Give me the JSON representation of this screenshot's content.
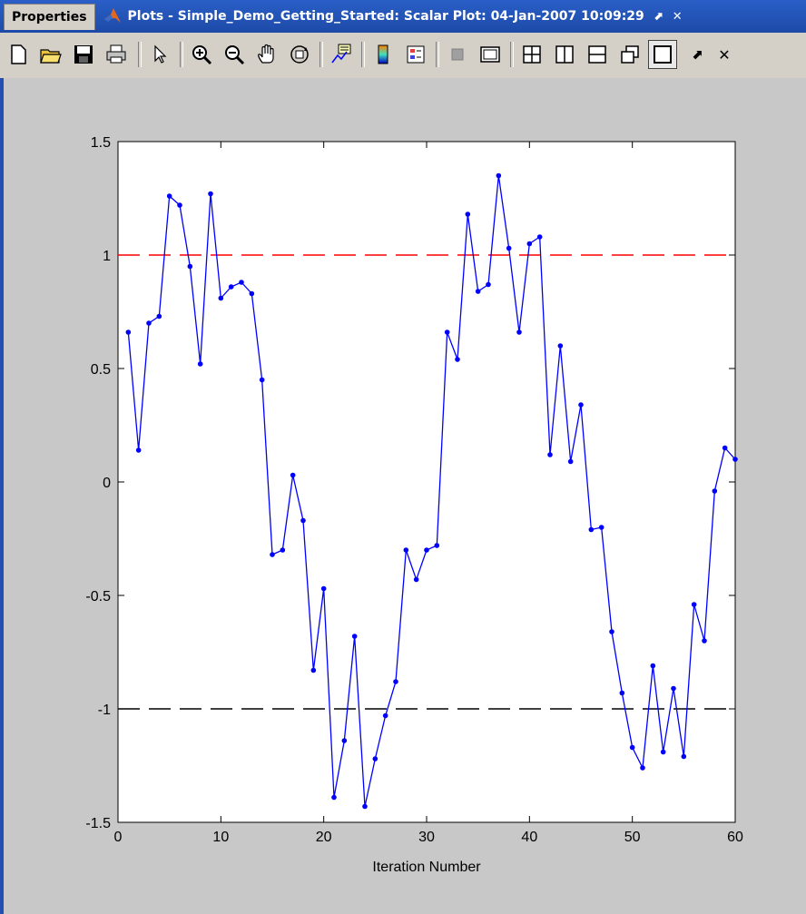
{
  "window": {
    "properties_tab": "Properties",
    "title": "Plots - Simple_Demo_Getting_Started: Scalar Plot: 04-Jan-2007 10:09:29",
    "btn_undock": "⬈",
    "btn_close": "✕"
  },
  "toolbar": {
    "items": [
      "new-figure",
      "open-file",
      "save",
      "print",
      "select-arrow",
      "zoom-in",
      "zoom-out",
      "pan-hand",
      "rotate-3d",
      "data-cursor",
      "colorbar",
      "legend",
      "hide-plot-tools",
      "show-plot-tools",
      "tile-grid",
      "tile-columns",
      "tile-rows",
      "float-windows",
      "maximize",
      "undock",
      "close"
    ],
    "undock_label": "⬈",
    "close_label": "✕"
  },
  "chart_data": {
    "type": "line",
    "xlabel": "Iteration Number",
    "ylabel": "",
    "xlim": [
      0,
      60
    ],
    "ylim": [
      -1.5,
      1.5
    ],
    "xticks": [
      "0",
      "10",
      "20",
      "30",
      "40",
      "50",
      "60"
    ],
    "yticks": [
      "-1.5",
      "-1",
      "-0.5",
      "0",
      "0.5",
      "1",
      "1.5"
    ],
    "grid": false,
    "series": [
      {
        "color": "#0000ff",
        "marker": "dot",
        "x": [
          1,
          2,
          3,
          4,
          5,
          6,
          7,
          8,
          9,
          10,
          11,
          12,
          13,
          14,
          15,
          16,
          17,
          18,
          19,
          20,
          21,
          22,
          23,
          24,
          25,
          26,
          27,
          28,
          29,
          30,
          31,
          32,
          33,
          34,
          35,
          36,
          37,
          38,
          39,
          40,
          41,
          42,
          43,
          44,
          45,
          46,
          47,
          48,
          49,
          50,
          51,
          52,
          53,
          54,
          55,
          56,
          57,
          58,
          59,
          60
        ],
        "values": [
          0.66,
          0.14,
          0.7,
          0.73,
          1.26,
          1.22,
          0.95,
          0.52,
          1.27,
          0.81,
          0.86,
          0.88,
          0.83,
          0.45,
          -0.32,
          -0.3,
          0.03,
          -0.17,
          -0.83,
          -0.47,
          -1.39,
          -1.14,
          -0.68,
          -1.43,
          -1.22,
          -1.03,
          -0.88,
          -0.3,
          -0.43,
          -0.3,
          -0.28,
          0.66,
          0.54,
          1.18,
          0.84,
          0.87,
          1.35,
          1.03,
          0.66,
          1.05,
          1.08,
          0.12,
          0.6,
          0.09,
          0.34,
          -0.21,
          -0.2,
          -0.66,
          -0.93,
          -1.17,
          -1.26,
          -0.81,
          -1.19,
          -0.91,
          -1.21,
          -0.54,
          -0.7,
          -0.04,
          0.15,
          0.1
        ]
      }
    ],
    "reference_lines": [
      {
        "y": 1,
        "color": "#ff0000",
        "style": "dashed"
      },
      {
        "y": -1,
        "color": "#000000",
        "style": "dashed"
      }
    ]
  }
}
